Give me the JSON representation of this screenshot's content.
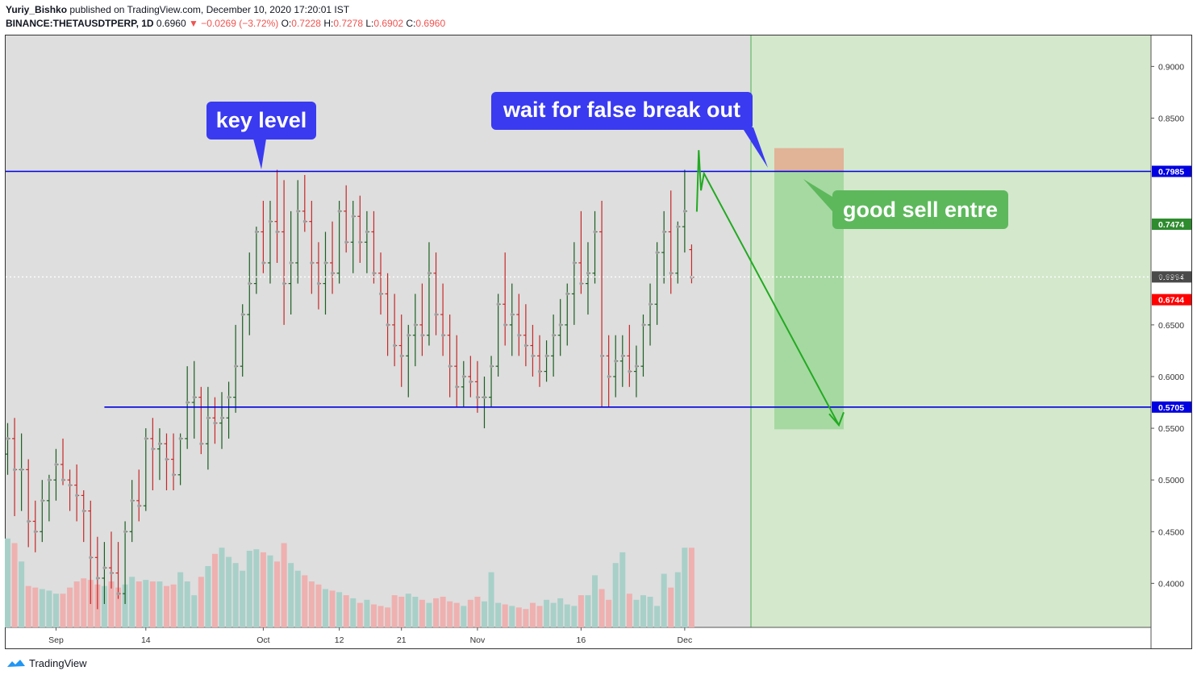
{
  "header": {
    "author": "Yuriy_Bishko",
    "published_text": "published on TradingView.com, December 10, 2020 17:20:01 IST",
    "symbol": "BINANCE:THETAUSDTPERP, 1D",
    "last": "0.6960",
    "change": "▼ −0.0269 (−3.72%)",
    "o_label": "O:",
    "o_value": "0.7228",
    "h_label": "H:",
    "h_value": "0.7278",
    "l_label": "L:",
    "l_value": "0.6902",
    "c_label": "C:",
    "c_value": "0.6960"
  },
  "annotations": {
    "key_level": "key level",
    "wait": "wait for false break out",
    "good_sell": "good sell entre"
  },
  "footer": {
    "brand": "TradingView"
  },
  "colors": {
    "up": "#1b5e20",
    "down": "#c62828",
    "level_line": "#0000e0",
    "bubble_blue": "#3a3af0",
    "bubble_green": "#5db85c",
    "projection_zone": "#d4e8cc",
    "vol_up": "#a8d0c8",
    "vol_down": "#efb0b0",
    "price_tag_red": "#ff0000",
    "price_tag_blue": "#0000e0",
    "price_tag_green": "#2e8b2e",
    "price_tag_dark": "#4a4a4a"
  },
  "chart_data": {
    "type": "bar",
    "y_axis": {
      "ticks": [
        {
          "value": 0.9,
          "label": "0.9000"
        },
        {
          "value": 0.85,
          "label": "0.8500"
        },
        {
          "value": 0.65,
          "label": "0.6500"
        },
        {
          "value": 0.6,
          "label": "0.6000"
        },
        {
          "value": 0.55,
          "label": "0.5500"
        },
        {
          "value": 0.5,
          "label": "0.5000"
        },
        {
          "value": 0.45,
          "label": "0.4500"
        },
        {
          "value": 0.4,
          "label": "0.4000"
        }
      ],
      "ylim": [
        0.355,
        0.93
      ]
    },
    "x_axis": {
      "ticks": [
        {
          "bar": 7,
          "label": "Sep"
        },
        {
          "bar": 20,
          "label": "14"
        },
        {
          "bar": 37,
          "label": "Oct"
        },
        {
          "bar": 48,
          "label": "12"
        },
        {
          "bar": 57,
          "label": "21"
        },
        {
          "bar": 68,
          "label": "Nov"
        },
        {
          "bar": 83,
          "label": "16"
        },
        {
          "bar": 98,
          "label": "Dec"
        }
      ]
    },
    "price_tags": [
      {
        "value": 0.7985,
        "label": "0.7985",
        "kind": "blue"
      },
      {
        "value": 0.7474,
        "label": "0.7474",
        "kind": "green"
      },
      {
        "value": 0.6964,
        "label": "0.6964",
        "kind": "dark"
      },
      {
        "value": 0.696,
        "label": "0.6960",
        "kind": "plain"
      },
      {
        "value": 0.6744,
        "label": "0.6744",
        "kind": "red"
      },
      {
        "value": 0.5705,
        "label": "0.5705",
        "kind": "blue"
      }
    ],
    "levels": [
      {
        "value": 0.7985,
        "from_bar": -1
      },
      {
        "value": 0.5705,
        "from_bar": 14
      }
    ],
    "last_price": 0.696,
    "bars": [
      [
        0.525,
        0.555,
        0.505,
        0.54
      ],
      [
        0.54,
        0.56,
        0.465,
        0.51
      ],
      [
        0.51,
        0.545,
        0.47,
        0.51
      ],
      [
        0.51,
        0.52,
        0.435,
        0.46
      ],
      [
        0.46,
        0.48,
        0.43,
        0.45
      ],
      [
        0.45,
        0.5,
        0.44,
        0.48
      ],
      [
        0.48,
        0.505,
        0.46,
        0.5
      ],
      [
        0.5,
        0.53,
        0.48,
        0.515
      ],
      [
        0.515,
        0.54,
        0.495,
        0.5
      ],
      [
        0.5,
        0.51,
        0.47,
        0.495
      ],
      [
        0.495,
        0.515,
        0.46,
        0.485
      ],
      [
        0.485,
        0.49,
        0.44,
        0.47
      ],
      [
        0.47,
        0.48,
        0.38,
        0.425
      ],
      [
        0.425,
        0.445,
        0.375,
        0.405
      ],
      [
        0.405,
        0.44,
        0.38,
        0.415
      ],
      [
        0.415,
        0.45,
        0.395,
        0.41
      ],
      [
        0.41,
        0.44,
        0.385,
        0.39
      ],
      [
        0.39,
        0.46,
        0.38,
        0.45
      ],
      [
        0.45,
        0.5,
        0.44,
        0.48
      ],
      [
        0.48,
        0.51,
        0.46,
        0.475
      ],
      [
        0.475,
        0.55,
        0.47,
        0.54
      ],
      [
        0.54,
        0.56,
        0.49,
        0.53
      ],
      [
        0.53,
        0.55,
        0.5,
        0.535
      ],
      [
        0.535,
        0.545,
        0.49,
        0.52
      ],
      [
        0.52,
        0.545,
        0.49,
        0.505
      ],
      [
        0.505,
        0.545,
        0.495,
        0.54
      ],
      [
        0.54,
        0.61,
        0.53,
        0.575
      ],
      [
        0.575,
        0.615,
        0.54,
        0.58
      ],
      [
        0.58,
        0.59,
        0.525,
        0.535
      ],
      [
        0.535,
        0.59,
        0.51,
        0.56
      ],
      [
        0.56,
        0.58,
        0.535,
        0.555
      ],
      [
        0.555,
        0.585,
        0.53,
        0.56
      ],
      [
        0.56,
        0.595,
        0.54,
        0.58
      ],
      [
        0.58,
        0.65,
        0.565,
        0.61
      ],
      [
        0.61,
        0.67,
        0.6,
        0.66
      ],
      [
        0.66,
        0.72,
        0.64,
        0.69
      ],
      [
        0.69,
        0.745,
        0.68,
        0.74
      ],
      [
        0.74,
        0.77,
        0.7,
        0.71
      ],
      [
        0.71,
        0.77,
        0.69,
        0.75
      ],
      [
        0.75,
        0.8,
        0.71,
        0.74
      ],
      [
        0.74,
        0.79,
        0.65,
        0.69
      ],
      [
        0.69,
        0.76,
        0.66,
        0.71
      ],
      [
        0.71,
        0.79,
        0.69,
        0.76
      ],
      [
        0.76,
        0.795,
        0.74,
        0.75
      ],
      [
        0.75,
        0.77,
        0.68,
        0.71
      ],
      [
        0.71,
        0.73,
        0.665,
        0.69
      ],
      [
        0.69,
        0.74,
        0.66,
        0.71
      ],
      [
        0.71,
        0.75,
        0.68,
        0.7
      ],
      [
        0.7,
        0.77,
        0.69,
        0.76
      ],
      [
        0.76,
        0.785,
        0.72,
        0.73
      ],
      [
        0.73,
        0.77,
        0.7,
        0.755
      ],
      [
        0.755,
        0.775,
        0.71,
        0.73
      ],
      [
        0.73,
        0.76,
        0.7,
        0.74
      ],
      [
        0.74,
        0.76,
        0.69,
        0.7
      ],
      [
        0.7,
        0.72,
        0.66,
        0.68
      ],
      [
        0.68,
        0.7,
        0.62,
        0.65
      ],
      [
        0.65,
        0.68,
        0.61,
        0.63
      ],
      [
        0.63,
        0.66,
        0.59,
        0.62
      ],
      [
        0.62,
        0.65,
        0.58,
        0.64
      ],
      [
        0.64,
        0.68,
        0.61,
        0.65
      ],
      [
        0.65,
        0.69,
        0.62,
        0.64
      ],
      [
        0.64,
        0.73,
        0.63,
        0.7
      ],
      [
        0.7,
        0.72,
        0.64,
        0.66
      ],
      [
        0.66,
        0.69,
        0.62,
        0.64
      ],
      [
        0.64,
        0.66,
        0.58,
        0.61
      ],
      [
        0.61,
        0.64,
        0.57,
        0.59
      ],
      [
        0.59,
        0.615,
        0.57,
        0.6
      ],
      [
        0.6,
        0.62,
        0.58,
        0.595
      ],
      [
        0.595,
        0.615,
        0.565,
        0.58
      ],
      [
        0.58,
        0.6,
        0.55,
        0.58
      ],
      [
        0.58,
        0.62,
        0.57,
        0.61
      ],
      [
        0.61,
        0.68,
        0.6,
        0.67
      ],
      [
        0.67,
        0.72,
        0.63,
        0.65
      ],
      [
        0.65,
        0.69,
        0.62,
        0.66
      ],
      [
        0.66,
        0.68,
        0.62,
        0.64
      ],
      [
        0.64,
        0.67,
        0.61,
        0.63
      ],
      [
        0.63,
        0.65,
        0.6,
        0.62
      ],
      [
        0.62,
        0.64,
        0.59,
        0.605
      ],
      [
        0.605,
        0.635,
        0.595,
        0.62
      ],
      [
        0.62,
        0.66,
        0.6,
        0.64
      ],
      [
        0.64,
        0.675,
        0.62,
        0.65
      ],
      [
        0.65,
        0.69,
        0.63,
        0.68
      ],
      [
        0.68,
        0.73,
        0.65,
        0.71
      ],
      [
        0.71,
        0.76,
        0.68,
        0.69
      ],
      [
        0.69,
        0.73,
        0.66,
        0.7
      ],
      [
        0.7,
        0.76,
        0.69,
        0.74
      ],
      [
        0.74,
        0.77,
        0.57,
        0.62
      ],
      [
        0.62,
        0.64,
        0.57,
        0.6
      ],
      [
        0.6,
        0.64,
        0.58,
        0.615
      ],
      [
        0.615,
        0.64,
        0.59,
        0.62
      ],
      [
        0.62,
        0.65,
        0.59,
        0.605
      ],
      [
        0.605,
        0.63,
        0.58,
        0.61
      ],
      [
        0.61,
        0.66,
        0.6,
        0.65
      ],
      [
        0.65,
        0.69,
        0.63,
        0.67
      ],
      [
        0.67,
        0.73,
        0.65,
        0.72
      ],
      [
        0.72,
        0.76,
        0.69,
        0.74
      ],
      [
        0.74,
        0.78,
        0.68,
        0.7
      ],
      [
        0.7,
        0.75,
        0.69,
        0.745
      ],
      [
        0.745,
        0.8,
        0.72,
        0.76
      ],
      [
        0.7228,
        0.7278,
        0.6902,
        0.696
      ]
    ],
    "volumes": [
      0.58,
      0.55,
      0.43,
      0.27,
      0.26,
      0.25,
      0.24,
      0.22,
      0.22,
      0.26,
      0.3,
      0.32,
      0.31,
      0.28,
      0.27,
      0.3,
      0.26,
      0.28,
      0.33,
      0.3,
      0.31,
      0.3,
      0.3,
      0.27,
      0.28,
      0.36,
      0.3,
      0.21,
      0.33,
      0.4,
      0.48,
      0.52,
      0.46,
      0.42,
      0.37,
      0.5,
      0.51,
      0.49,
      0.47,
      0.43,
      0.55,
      0.42,
      0.37,
      0.34,
      0.3,
      0.28,
      0.25,
      0.24,
      0.23,
      0.21,
      0.19,
      0.16,
      0.18,
      0.15,
      0.14,
      0.13,
      0.21,
      0.2,
      0.22,
      0.2,
      0.18,
      0.16,
      0.19,
      0.2,
      0.17,
      0.16,
      0.14,
      0.18,
      0.2,
      0.17,
      0.36,
      0.16,
      0.15,
      0.14,
      0.13,
      0.12,
      0.16,
      0.14,
      0.18,
      0.16,
      0.19,
      0.15,
      0.14,
      0.21,
      0.21,
      0.34,
      0.25,
      0.18,
      0.42,
      0.49,
      0.22,
      0.18,
      0.21,
      0.2,
      0.14,
      0.35,
      0.26,
      0.36,
      0.52,
      0.52
    ],
    "projection": {
      "path": [
        [
          0.755,
          0.7595
        ],
        [
          1.03,
          0.819
        ],
        [
          1.355,
          0.78
        ],
        [
          1.79,
          0.7965
        ],
        [
          6.35,
          0.553
        ]
      ],
      "stop_zone": [
        0.7985,
        0.821
      ],
      "target_zone": [
        0.549,
        0.7985
      ]
    }
  }
}
